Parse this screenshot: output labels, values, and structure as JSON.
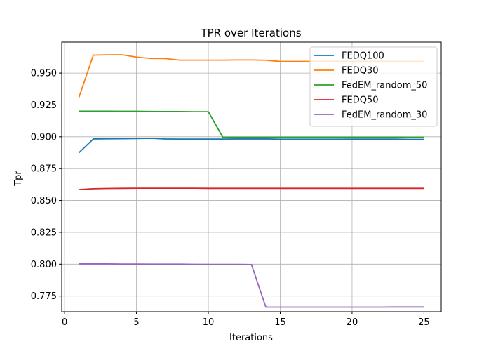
{
  "chart_data": {
    "type": "line",
    "title": "TPR over Iterations",
    "xlabel": "Iterations",
    "ylabel": "Tpr",
    "xlim": [
      -0.2,
      26.2
    ],
    "ylim": [
      0.7627,
      0.9743
    ],
    "xticks": [
      0,
      5,
      10,
      15,
      20,
      25
    ],
    "xtick_labels": [
      "0",
      "5",
      "10",
      "15",
      "20",
      "25"
    ],
    "yticks": [
      0.775,
      0.8,
      0.825,
      0.85,
      0.875,
      0.9,
      0.925,
      0.95
    ],
    "ytick_labels": [
      "0.775",
      "0.800",
      "0.825",
      "0.850",
      "0.875",
      "0.900",
      "0.925",
      "0.950"
    ],
    "grid": true,
    "legend_position": "top-right",
    "x": [
      1,
      2,
      3,
      4,
      5,
      6,
      7,
      8,
      9,
      10,
      11,
      12,
      13,
      14,
      15,
      16,
      17,
      18,
      19,
      20,
      21,
      22,
      23,
      24,
      25
    ],
    "series": [
      {
        "name": "FEDQ100",
        "color": "#1f77b4",
        "values": [
          0.8875,
          0.8983,
          0.8984,
          0.8985,
          0.8986,
          0.8988,
          0.8983,
          0.8982,
          0.8982,
          0.8982,
          0.8982,
          0.8983,
          0.8983,
          0.8983,
          0.8981,
          0.8981,
          0.8981,
          0.8981,
          0.8981,
          0.8982,
          0.8982,
          0.8982,
          0.8982,
          0.898,
          0.898
        ]
      },
      {
        "name": "FEDQ30",
        "color": "#ff7f0e",
        "values": [
          0.931,
          0.9641,
          0.9643,
          0.9644,
          0.9625,
          0.9615,
          0.9614,
          0.9602,
          0.9602,
          0.9602,
          0.9602,
          0.9603,
          0.9603,
          0.9601,
          0.9591,
          0.9591,
          0.9591,
          0.9592,
          0.9592,
          0.9592,
          0.9592,
          0.9592,
          0.9592,
          0.9592,
          0.9591
        ]
      },
      {
        "name": "FedEM_random_50",
        "color": "#2ca02c",
        "values": [
          0.9201,
          0.9201,
          0.9201,
          0.92,
          0.92,
          0.9199,
          0.9198,
          0.9198,
          0.9197,
          0.9197,
          0.8997,
          0.8997,
          0.8997,
          0.8997,
          0.8997,
          0.8997,
          0.8997,
          0.8997,
          0.8997,
          0.8997,
          0.8997,
          0.8997,
          0.8997,
          0.8996,
          0.8996
        ]
      },
      {
        "name": "FEDQ50",
        "color": "#d62728",
        "values": [
          0.8585,
          0.8592,
          0.8594,
          0.8595,
          0.8596,
          0.8596,
          0.8596,
          0.8596,
          0.8596,
          0.8595,
          0.8595,
          0.8595,
          0.8595,
          0.8595,
          0.8595,
          0.8595,
          0.8595,
          0.8595,
          0.8595,
          0.8595,
          0.8595,
          0.8595,
          0.8595,
          0.8595,
          0.8595
        ]
      },
      {
        "name": "FedEM_random_30",
        "color": "#9467bd",
        "values": [
          0.8002,
          0.8002,
          0.8002,
          0.8001,
          0.8001,
          0.8,
          0.8,
          0.8,
          0.7999,
          0.7998,
          0.7998,
          0.7998,
          0.7997,
          0.7663,
          0.7663,
          0.7663,
          0.7663,
          0.7663,
          0.7663,
          0.7663,
          0.7663,
          0.7663,
          0.7664,
          0.7664,
          0.7664
        ]
      }
    ]
  }
}
